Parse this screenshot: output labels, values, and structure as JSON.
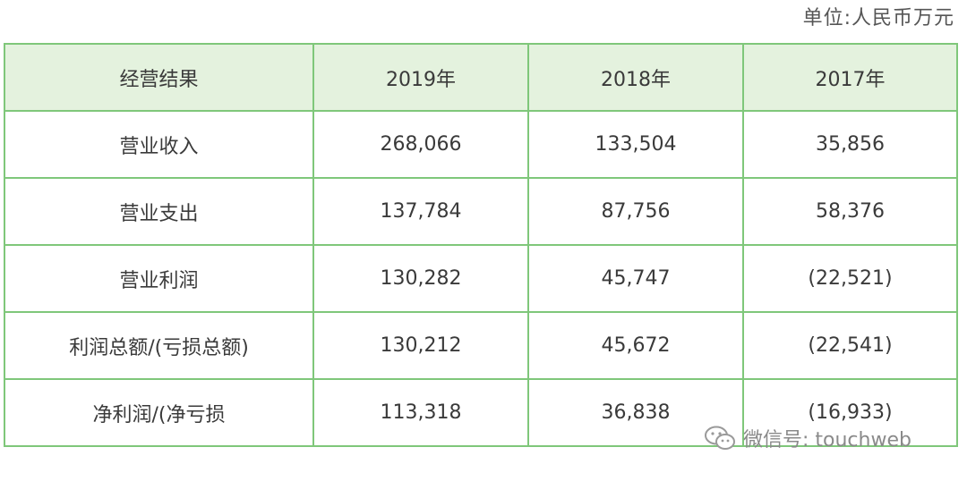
{
  "unit_label": "单位:人民币万元",
  "table": {
    "headers": [
      "经营结果",
      "2019年",
      "2018年",
      "2017年"
    ],
    "rows": [
      [
        "营业收入",
        "268,066",
        "133,504",
        "35,856"
      ],
      [
        "营业支出",
        "137,784",
        "87,756",
        "58,376"
      ],
      [
        "营业利润",
        "130,282",
        "45,747",
        "(22,521)"
      ],
      [
        "利润总额/(亏损总额)",
        "130,212",
        "45,672",
        "(22,541)"
      ],
      [
        "净利润/(净亏损",
        "113,318",
        "36,838",
        "(16,933)"
      ]
    ]
  },
  "watermark": {
    "icon": "wechat-icon",
    "text": "微信号: touchweb"
  }
}
